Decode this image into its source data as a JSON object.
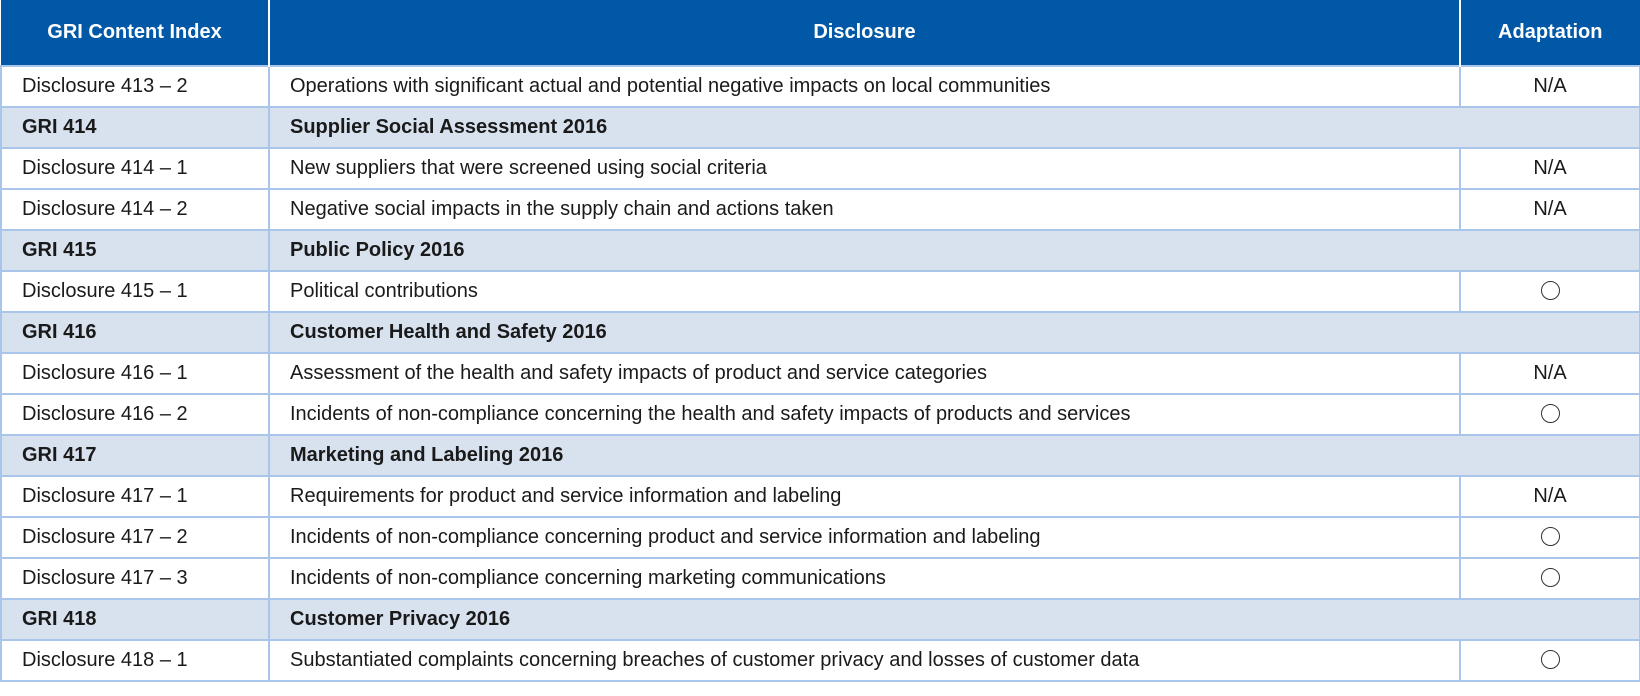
{
  "header": {
    "col1": "GRI Content Index",
    "col2": "Disclosure",
    "col3": "Adaptation"
  },
  "rows": [
    {
      "type": "item",
      "index": "Disclosure 413 – 2",
      "disclosure": "Operations with significant actual and potential negative impacts on local communities",
      "adaptation": "N/A"
    },
    {
      "type": "section",
      "index": "GRI 414",
      "disclosure": "Supplier Social Assessment 2016"
    },
    {
      "type": "item",
      "index": "Disclosure 414 – 1",
      "disclosure": "New suppliers that were screened using social criteria",
      "adaptation": "N/A"
    },
    {
      "type": "item",
      "index": "Disclosure 414 – 2",
      "disclosure": "Negative social impacts in the supply chain and actions taken",
      "adaptation": "N/A"
    },
    {
      "type": "section",
      "index": "GRI 415",
      "disclosure": "Public Policy 2016"
    },
    {
      "type": "item",
      "index": "Disclosure 415 – 1",
      "disclosure": "Political contributions",
      "adaptation": "○"
    },
    {
      "type": "section",
      "index": "GRI 416",
      "disclosure": "Customer Health and Safety 2016"
    },
    {
      "type": "item",
      "index": "Disclosure 416 – 1",
      "disclosure": "Assessment of the health and safety impacts of product and service categories",
      "adaptation": "N/A"
    },
    {
      "type": "item",
      "index": "Disclosure 416 – 2",
      "disclosure": "Incidents of non-compliance concerning the health and safety impacts of products and services",
      "adaptation": "○"
    },
    {
      "type": "section",
      "index": "GRI 417",
      "disclosure": "Marketing and Labeling 2016"
    },
    {
      "type": "item",
      "index": "Disclosure 417 – 1",
      "disclosure": "Requirements for product and service information and labeling",
      "adaptation": "N/A"
    },
    {
      "type": "item",
      "index": "Disclosure 417 – 2",
      "disclosure": "Incidents of non-compliance concerning product and service information and labeling",
      "adaptation": "○"
    },
    {
      "type": "item",
      "index": "Disclosure 417 – 3",
      "disclosure": "Incidents of non-compliance concerning marketing communications",
      "adaptation": "○"
    },
    {
      "type": "section",
      "index": "GRI 418",
      "disclosure": "Customer Privacy 2016"
    },
    {
      "type": "item",
      "index": "Disclosure 418 – 1",
      "disclosure": "Substantiated complaints concerning breaches of customer privacy and losses of customer data",
      "adaptation": "○"
    }
  ]
}
